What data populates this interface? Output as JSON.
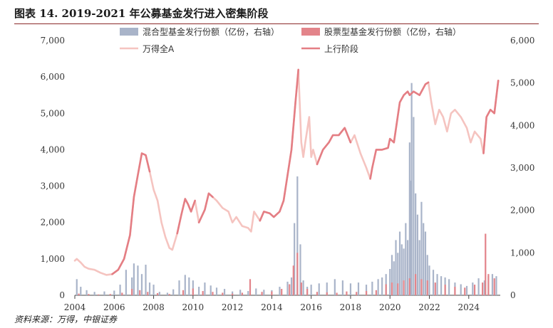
{
  "header": {
    "title": "图表 14. 2019-2021 年公募基金发行进入密集阶段"
  },
  "footer": {
    "source": "资料来源：万得，中银证券"
  },
  "colors": {
    "hybrid_bar": "#a9b4c9",
    "equity_bar": "#e3848a",
    "index_line": "#f5c4c0",
    "uptrend_line": "#e47e84",
    "title_rule": "#8b2a2a"
  },
  "chart_data": {
    "type": "bar",
    "title": "图表 14. 2019-2021 年公募基金发行进入密集阶段",
    "x_range": [
      2004.0,
      2025.6
    ],
    "x_ticks": [
      2004,
      2006,
      2008,
      2010,
      2012,
      2014,
      2016,
      2018,
      2020,
      2022,
      2024
    ],
    "x_tick_labels": [
      "2004",
      "2006",
      "2008",
      "2010",
      "2012",
      "2014",
      "2016",
      "2018",
      "2020",
      "2022",
      "2024"
    ],
    "ylim_left": [
      0,
      7000
    ],
    "yticks_left": [
      0,
      1000,
      2000,
      3000,
      4000,
      5000,
      6000,
      7000
    ],
    "ytick_labels_left": [
      "0",
      "1,000",
      "2,000",
      "3,000",
      "4,000",
      "5,000",
      "6,000",
      "7,000"
    ],
    "ylim_right": [
      0,
      6000
    ],
    "yticks_right": [
      0,
      1000,
      2000,
      3000,
      4000,
      5000,
      6000
    ],
    "ytick_labels_right": [
      "0",
      "1,000",
      "2,000",
      "3,000",
      "4,000",
      "5,000",
      "6,000"
    ],
    "grid": false,
    "legend_position": "top",
    "legend": [
      {
        "key": "hybrid",
        "label": "混合型基金发行份额（亿份，右轴）",
        "kind": "bar"
      },
      {
        "key": "equity",
        "label": "股票型基金发行份额（亿份，右轴）",
        "kind": "bar"
      },
      {
        "key": "index",
        "label": "万得全A",
        "kind": "line"
      },
      {
        "key": "uptrend",
        "label": "上行阶段",
        "kind": "line"
      }
    ],
    "series_index": {
      "name": "万得全A",
      "axis": "left",
      "x": [
        2004.0,
        2004.1,
        2004.3,
        2004.5,
        2004.7,
        2005.0,
        2005.3,
        2005.6,
        2005.9,
        2006.2,
        2006.5,
        2006.8,
        2007.0,
        2007.2,
        2007.4,
        2007.6,
        2007.8,
        2008.0,
        2008.2,
        2008.4,
        2008.6,
        2008.8,
        2008.95,
        2009.2,
        2009.4,
        2009.6,
        2009.75,
        2009.9,
        2010.1,
        2010.3,
        2010.6,
        2010.8,
        2011.0,
        2011.2,
        2011.5,
        2011.8,
        2012.0,
        2012.2,
        2012.5,
        2012.8,
        2012.95,
        2013.1,
        2013.4,
        2013.6,
        2013.9,
        2014.1,
        2014.4,
        2014.6,
        2014.8,
        2015.0,
        2015.2,
        2015.35,
        2015.5,
        2015.6,
        2015.7,
        2015.9,
        2016.0,
        2016.1,
        2016.3,
        2016.6,
        2016.9,
        2017.1,
        2017.4,
        2017.7,
        2018.0,
        2018.2,
        2018.5,
        2018.8,
        2019.0,
        2019.1,
        2019.3,
        2019.6,
        2019.9,
        2020.0,
        2020.2,
        2020.5,
        2020.7,
        2020.9,
        2021.0,
        2021.2,
        2021.5,
        2021.8,
        2021.95,
        2022.1,
        2022.3,
        2022.5,
        2022.7,
        2022.9,
        2023.1,
        2023.3,
        2023.6,
        2023.9,
        2024.1,
        2024.3,
        2024.6,
        2024.75,
        2024.9,
        2025.1,
        2025.3,
        2025.5
      ],
      "values": [
        950,
        1000,
        900,
        780,
        730,
        700,
        620,
        560,
        580,
        700,
        1000,
        1650,
        2700,
        3300,
        3900,
        3850,
        3400,
        2900,
        2600,
        2000,
        1600,
        1300,
        1250,
        1700,
        2200,
        2650,
        2500,
        2300,
        2600,
        2000,
        2350,
        2800,
        2700,
        2600,
        2400,
        2300,
        2000,
        2150,
        1900,
        1850,
        1750,
        2300,
        2050,
        2300,
        2250,
        2150,
        2300,
        2600,
        3300,
        4000,
        5300,
        6200,
        4200,
        3800,
        4200,
        4900,
        3800,
        4000,
        3600,
        4000,
        4200,
        4400,
        4400,
        4600,
        4200,
        4400,
        3900,
        3500,
        3200,
        3500,
        4000,
        4000,
        4050,
        4300,
        4200,
        5300,
        5500,
        5600,
        5500,
        5600,
        5500,
        5800,
        5850,
        5300,
        4700,
        5100,
        4900,
        4500,
        5000,
        5100,
        4900,
        4600,
        4200,
        4500,
        4300,
        3900,
        4900,
        5100,
        5000,
        5900
      ]
    },
    "series_uptrend": {
      "name": "上行阶段",
      "axis": "left",
      "segments": [
        {
          "x": [
            2005.9,
            2006.2,
            2006.5,
            2006.8,
            2007.0,
            2007.2,
            2007.4,
            2007.6,
            2007.8
          ],
          "values": [
            580,
            700,
            1000,
            1650,
            2700,
            3300,
            3900,
            3850,
            3400
          ]
        },
        {
          "x": [
            2009.2,
            2009.4,
            2009.6,
            2009.75,
            2009.9,
            2010.1
          ],
          "values": [
            1700,
            2200,
            2650,
            2500,
            2300,
            2600
          ]
        },
        {
          "x": [
            2010.3,
            2010.6,
            2010.8,
            2011.0
          ],
          "values": [
            2000,
            2350,
            2800,
            2700
          ]
        },
        {
          "x": [
            2013.4,
            2013.6,
            2013.9,
            2014.1,
            2014.4,
            2014.6,
            2014.8,
            2015.0,
            2015.2,
            2015.35
          ],
          "values": [
            2050,
            2300,
            2250,
            2150,
            2300,
            2600,
            3300,
            4000,
            5300,
            6200
          ]
        },
        {
          "x": [
            2016.3,
            2016.6,
            2016.9,
            2017.1,
            2017.4,
            2017.7,
            2018.0
          ],
          "values": [
            3600,
            4000,
            4200,
            4400,
            4400,
            4600,
            4200
          ]
        },
        {
          "x": [
            2019.0,
            2019.1,
            2019.3,
            2019.6,
            2019.9,
            2020.0,
            2020.2,
            2020.5,
            2020.7,
            2020.9,
            2021.0,
            2021.2,
            2021.5,
            2021.8,
            2021.95
          ],
          "values": [
            3200,
            3500,
            4000,
            4000,
            4050,
            4300,
            4200,
            5300,
            5500,
            5600,
            5500,
            5600,
            5500,
            5800,
            5850
          ]
        },
        {
          "x": [
            2024.75,
            2024.9,
            2025.1,
            2025.3,
            2025.5
          ],
          "values": [
            3900,
            4900,
            5100,
            5000,
            5900
          ]
        }
      ]
    },
    "series_hybrid": {
      "name": "混合型基金发行份额（亿份，右轴）",
      "axis": "right",
      "x": [
        2004.1,
        2004.3,
        2004.6,
        2005.0,
        2005.5,
        2006.0,
        2006.3,
        2006.6,
        2006.9,
        2007.0,
        2007.2,
        2007.4,
        2007.6,
        2007.8,
        2008.0,
        2008.3,
        2008.7,
        2009.0,
        2009.3,
        2009.6,
        2009.8,
        2010.0,
        2010.3,
        2010.6,
        2010.9,
        2011.2,
        2011.6,
        2012.0,
        2012.4,
        2012.8,
        2013.2,
        2013.6,
        2014.0,
        2014.4,
        2014.8,
        2015.0,
        2015.15,
        2015.3,
        2015.45,
        2015.6,
        2015.8,
        2016.0,
        2016.4,
        2016.8,
        2017.2,
        2017.6,
        2018.0,
        2018.4,
        2018.8,
        2019.1,
        2019.4,
        2019.6,
        2019.8,
        2020.0,
        2020.1,
        2020.2,
        2020.3,
        2020.4,
        2020.5,
        2020.6,
        2020.7,
        2020.8,
        2020.9,
        2021.0,
        2021.05,
        2021.1,
        2021.2,
        2021.3,
        2021.4,
        2021.5,
        2021.6,
        2021.7,
        2021.8,
        2021.9,
        2022.0,
        2022.2,
        2022.4,
        2022.6,
        2022.8,
        2023.0,
        2023.3,
        2023.6,
        2023.9,
        2024.2,
        2024.5,
        2024.8,
        2025.0,
        2025.2,
        2025.4
      ],
      "values": [
        380,
        200,
        120,
        80,
        90,
        110,
        250,
        600,
        420,
        750,
        700,
        500,
        720,
        300,
        250,
        80,
        60,
        140,
        350,
        480,
        420,
        350,
        200,
        300,
        230,
        180,
        150,
        90,
        130,
        100,
        160,
        130,
        120,
        200,
        320,
        420,
        1700,
        2800,
        1200,
        350,
        200,
        250,
        280,
        300,
        380,
        350,
        280,
        300,
        250,
        320,
        380,
        420,
        500,
        620,
        950,
        800,
        1300,
        1000,
        1500,
        1200,
        1100,
        1700,
        1300,
        3600,
        2700,
        5000,
        4200,
        2400,
        1900,
        1300,
        2200,
        1700,
        1500,
        950,
        700,
        600,
        500,
        450,
        420,
        380,
        300,
        260,
        220,
        300,
        400,
        350,
        450,
        500,
        450
      ]
    },
    "series_equity": {
      "name": "股票型基金发行份额（亿份，右轴）",
      "axis": "right",
      "x": [
        2004.2,
        2004.7,
        2005.2,
        2005.8,
        2006.4,
        2006.9,
        2007.3,
        2007.7,
        2008.2,
        2008.8,
        2009.5,
        2010.0,
        2010.5,
        2011.0,
        2011.5,
        2012.0,
        2012.5,
        2012.9,
        2013.5,
        2014.0,
        2014.5,
        2014.9,
        2015.1,
        2015.3,
        2015.5,
        2015.8,
        2016.3,
        2016.8,
        2017.3,
        2017.8,
        2018.3,
        2018.8,
        2019.3,
        2019.8,
        2020.1,
        2020.4,
        2020.7,
        2021.0,
        2021.3,
        2021.6,
        2021.9,
        2022.3,
        2022.8,
        2023.3,
        2023.8,
        2024.3,
        2024.7,
        2024.85,
        2025.0,
        2025.3
      ],
      "values": [
        40,
        30,
        20,
        30,
        60,
        150,
        120,
        80,
        50,
        30,
        120,
        160,
        100,
        80,
        60,
        40,
        60,
        380,
        80,
        90,
        150,
        260,
        700,
        1000,
        300,
        150,
        80,
        70,
        60,
        90,
        80,
        100,
        120,
        260,
        300,
        280,
        350,
        400,
        500,
        380,
        350,
        300,
        250,
        200,
        180,
        250,
        300,
        1450,
        500,
        400
      ]
    }
  }
}
